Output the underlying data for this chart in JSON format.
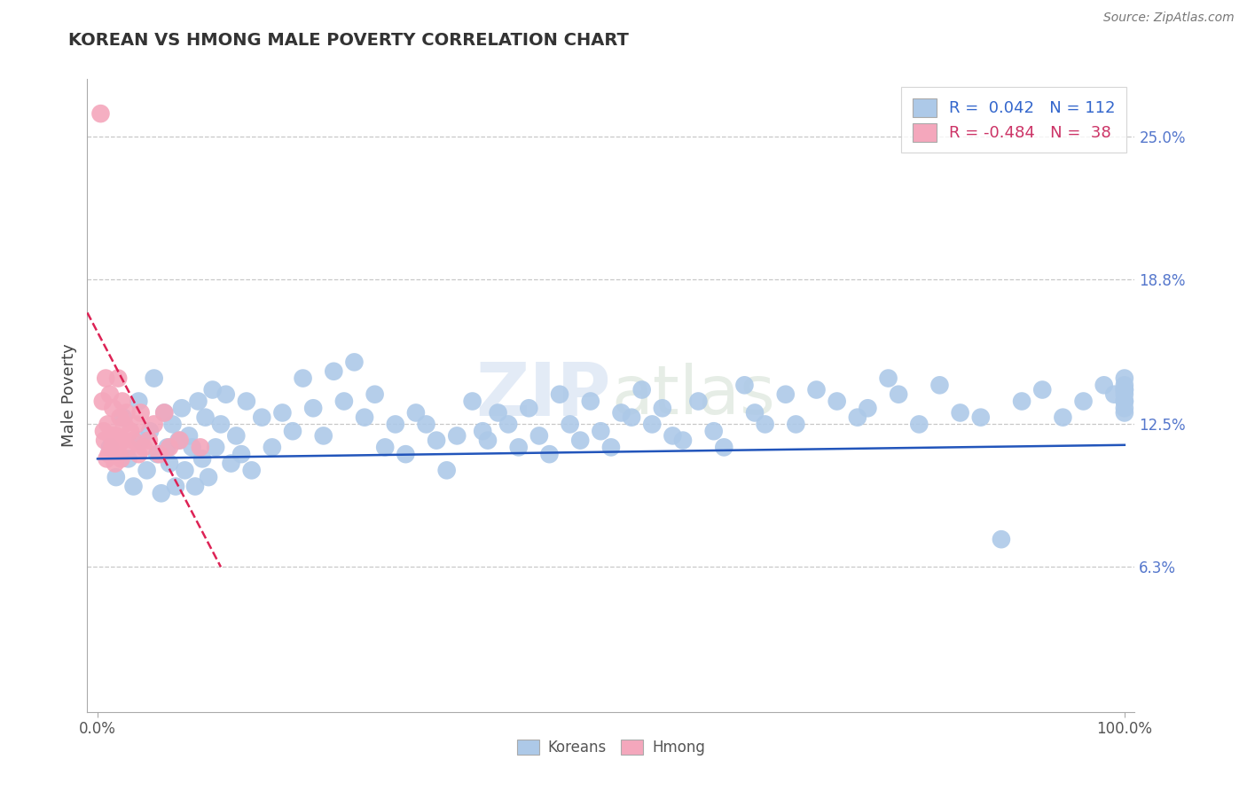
{
  "title": "KOREAN VS HMONG MALE POVERTY CORRELATION CHART",
  "source": "Source: ZipAtlas.com",
  "ylabel": "Male Poverty",
  "watermark_zip": "ZIP",
  "watermark_atlas": "atlas",
  "koreans_R": 0.042,
  "koreans_N": 112,
  "hmong_R": -0.484,
  "hmong_N": 38,
  "ytick_values": [
    6.3,
    12.5,
    18.8,
    25.0
  ],
  "ytick_labels": [
    "6.3%",
    "12.5%",
    "18.8%",
    "25.0%"
  ],
  "xlim": [
    -1,
    101
  ],
  "ylim": [
    0,
    27.5
  ],
  "korean_color": "#adc9e8",
  "hmong_color": "#f4a7bc",
  "korean_line_color": "#2255bb",
  "hmong_line_color": "#dd2255",
  "background_color": "#ffffff",
  "grid_color": "#c8c8c8",
  "korean_x": [
    1.2,
    1.8,
    2.5,
    3.0,
    3.5,
    4.0,
    4.2,
    4.8,
    5.1,
    5.5,
    5.8,
    6.2,
    6.5,
    6.8,
    7.0,
    7.3,
    7.6,
    7.9,
    8.2,
    8.5,
    8.9,
    9.2,
    9.5,
    9.8,
    10.2,
    10.5,
    10.8,
    11.2,
    11.5,
    12.0,
    12.5,
    13.0,
    13.5,
    14.0,
    14.5,
    15.0,
    16.0,
    17.0,
    18.0,
    19.0,
    20.0,
    21.0,
    22.0,
    23.0,
    24.0,
    25.0,
    26.0,
    27.0,
    28.0,
    29.0,
    30.0,
    31.0,
    32.0,
    33.0,
    34.0,
    35.0,
    36.5,
    37.5,
    38.0,
    39.0,
    40.0,
    41.0,
    42.0,
    43.0,
    44.0,
    45.0,
    46.0,
    47.0,
    48.0,
    49.0,
    50.0,
    51.0,
    52.0,
    53.0,
    54.0,
    55.0,
    56.0,
    57.0,
    58.5,
    60.0,
    61.0,
    63.0,
    64.0,
    65.0,
    67.0,
    68.0,
    70.0,
    72.0,
    74.0,
    75.0,
    77.0,
    78.0,
    80.0,
    82.0,
    84.0,
    86.0,
    88.0,
    90.0,
    92.0,
    94.0,
    96.0,
    98.0,
    99.0,
    100.0,
    100.5,
    101.0,
    101.5,
    102.0,
    102.5,
    103.0,
    103.5,
    104.0
  ],
  "korean_y": [
    11.5,
    10.2,
    12.8,
    11.0,
    9.8,
    13.5,
    11.8,
    10.5,
    12.2,
    14.5,
    11.2,
    9.5,
    13.0,
    11.5,
    10.8,
    12.5,
    9.8,
    11.8,
    13.2,
    10.5,
    12.0,
    11.5,
    9.8,
    13.5,
    11.0,
    12.8,
    10.2,
    14.0,
    11.5,
    12.5,
    13.8,
    10.8,
    12.0,
    11.2,
    13.5,
    10.5,
    12.8,
    11.5,
    13.0,
    12.2,
    14.5,
    13.2,
    12.0,
    14.8,
    13.5,
    15.2,
    12.8,
    13.8,
    11.5,
    12.5,
    11.2,
    13.0,
    12.5,
    11.8,
    10.5,
    12.0,
    13.5,
    12.2,
    11.8,
    13.0,
    12.5,
    11.5,
    13.2,
    12.0,
    11.2,
    13.8,
    12.5,
    11.8,
    13.5,
    12.2,
    11.5,
    13.0,
    12.8,
    14.0,
    12.5,
    13.2,
    12.0,
    11.8,
    13.5,
    12.2,
    11.5,
    14.2,
    13.0,
    12.5,
    13.8,
    12.5,
    14.0,
    13.5,
    12.8,
    13.2,
    14.5,
    13.8,
    12.5,
    14.2,
    13.0,
    12.8,
    7.5,
    13.5,
    14.0,
    12.8,
    13.5,
    14.2,
    13.8,
    13.0,
    13.5,
    14.0,
    13.2,
    14.5,
    13.8,
    14.2,
    13.5,
    14.0
  ],
  "hmong_x": [
    0.3,
    0.5,
    0.6,
    0.7,
    0.8,
    0.9,
    1.0,
    1.1,
    1.2,
    1.3,
    1.4,
    1.5,
    1.6,
    1.7,
    1.8,
    1.9,
    2.0,
    2.1,
    2.2,
    2.3,
    2.4,
    2.5,
    2.6,
    2.8,
    3.0,
    3.2,
    3.5,
    3.8,
    4.0,
    4.2,
    4.5,
    5.0,
    5.5,
    6.0,
    6.5,
    7.0,
    8.0,
    10.0
  ],
  "hmong_y": [
    26.0,
    13.5,
    12.2,
    11.8,
    14.5,
    11.0,
    12.5,
    11.2,
    13.8,
    12.0,
    11.5,
    13.2,
    11.8,
    10.8,
    12.0,
    11.5,
    14.5,
    11.2,
    12.8,
    11.0,
    13.5,
    11.8,
    12.5,
    13.0,
    11.5,
    12.2,
    11.8,
    12.5,
    11.2,
    13.0,
    11.5,
    11.8,
    12.5,
    11.2,
    13.0,
    11.5,
    11.8,
    11.5
  ]
}
